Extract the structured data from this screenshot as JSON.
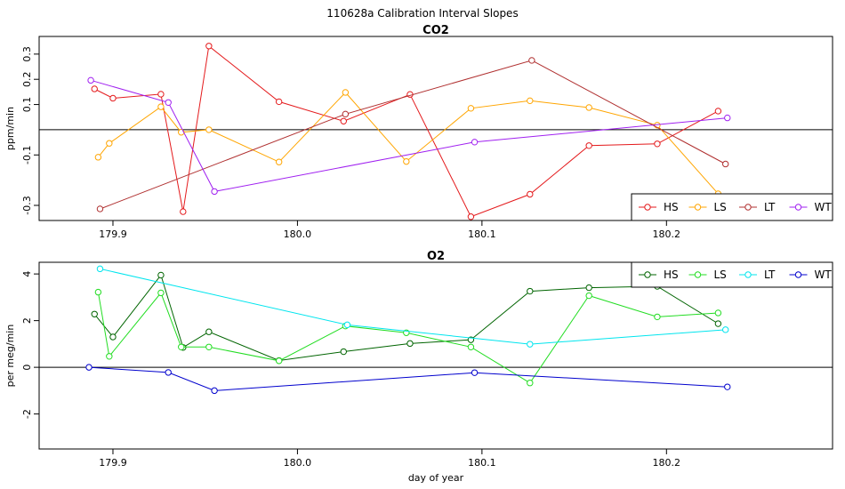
{
  "figure_title": "110628a   Calibration Interval Slopes",
  "chart_data": [
    {
      "type": "line",
      "title": "CO2",
      "xlabel": "",
      "ylabel": "ppm/min",
      "xlim": [
        179.86,
        180.29
      ],
      "ylim": [
        -0.36,
        0.37
      ],
      "x_ticks": [
        179.9,
        180.0,
        180.1,
        180.2
      ],
      "x_tick_labels": [
        "179.9",
        "180.0",
        "180.1",
        "180.2"
      ],
      "y_ticks": [
        -0.3,
        -0.1,
        0.1,
        0.2,
        0.3
      ],
      "y_tick_labels": [
        "-0.3",
        "-0.1",
        "0.1",
        "0.2",
        "0.3"
      ],
      "reference_line_y": 0,
      "legend": {
        "placement": "bottom-right"
      },
      "series": [
        {
          "name": "HS",
          "color": "#e41a1c",
          "x": [
            179.89,
            179.9,
            179.926,
            179.938,
            179.952,
            179.99,
            180.025,
            180.061,
            180.094,
            180.126,
            180.158,
            180.195,
            180.228
          ],
          "y": [
            0.162,
            0.125,
            0.141,
            -0.325,
            0.332,
            0.111,
            0.034,
            0.14,
            -0.345,
            -0.256,
            -0.063,
            -0.056,
            0.074
          ]
        },
        {
          "name": "LS",
          "color": "#ffa500",
          "x": [
            179.892,
            179.898,
            179.926,
            179.937,
            179.952,
            179.99,
            180.026,
            180.059,
            180.094,
            180.126,
            180.158,
            180.195,
            180.228
          ],
          "y": [
            -0.109,
            -0.054,
            0.091,
            -0.01,
            0.0,
            -0.128,
            0.148,
            -0.126,
            0.085,
            0.115,
            0.088,
            0.018,
            -0.254
          ]
        },
        {
          "name": "LT",
          "color": "#b03030",
          "x": [
            179.893,
            180.026,
            180.127,
            180.232
          ],
          "y": [
            -0.314,
            0.062,
            0.275,
            -0.136
          ]
        },
        {
          "name": "WT",
          "color": "#a020f0",
          "x": [
            179.888,
            179.93,
            179.955,
            180.096,
            180.233
          ],
          "y": [
            0.196,
            0.108,
            -0.245,
            -0.049,
            0.047
          ]
        }
      ]
    },
    {
      "type": "line",
      "title": "O2",
      "xlabel": "day of year",
      "ylabel": "per meg/min",
      "xlim": [
        179.86,
        180.29
      ],
      "ylim": [
        -3.5,
        4.5
      ],
      "x_ticks": [
        179.9,
        180.0,
        180.1,
        180.2
      ],
      "x_tick_labels": [
        "179.9",
        "180.0",
        "180.1",
        "180.2"
      ],
      "y_ticks": [
        -2,
        0,
        2,
        4
      ],
      "y_tick_labels": [
        "-2",
        "0",
        "2",
        "4"
      ],
      "reference_line_y": 0,
      "legend": {
        "placement": "top-right"
      },
      "series": [
        {
          "name": "HS",
          "color": "#006400",
          "x": [
            179.89,
            179.9,
            179.926,
            179.938,
            179.952,
            179.99,
            180.025,
            180.061,
            180.094,
            180.126,
            180.158,
            180.195,
            180.228
          ],
          "y": [
            2.28,
            1.3,
            3.95,
            0.85,
            1.52,
            0.29,
            0.67,
            1.02,
            1.18,
            3.26,
            3.41,
            3.47,
            1.87
          ]
        },
        {
          "name": "LS",
          "color": "#22dd22",
          "x": [
            179.892,
            179.898,
            179.926,
            179.937,
            179.952,
            179.99,
            180.026,
            180.059,
            180.094,
            180.126,
            180.158,
            180.195,
            180.228
          ],
          "y": [
            3.22,
            0.47,
            3.19,
            0.87,
            0.87,
            0.28,
            1.77,
            1.48,
            0.87,
            -0.67,
            3.07,
            2.16,
            2.33
          ]
        },
        {
          "name": "LT",
          "color": "#00e5ee",
          "x": [
            179.893,
            180.027,
            180.126,
            180.232
          ],
          "y": [
            4.22,
            1.82,
            0.99,
            1.61
          ]
        },
        {
          "name": "WT",
          "color": "#0000cd",
          "x": [
            179.887,
            179.93,
            179.955,
            180.096,
            180.233
          ],
          "y": [
            0.0,
            -0.22,
            -1.0,
            -0.23,
            -0.84
          ]
        }
      ]
    }
  ]
}
